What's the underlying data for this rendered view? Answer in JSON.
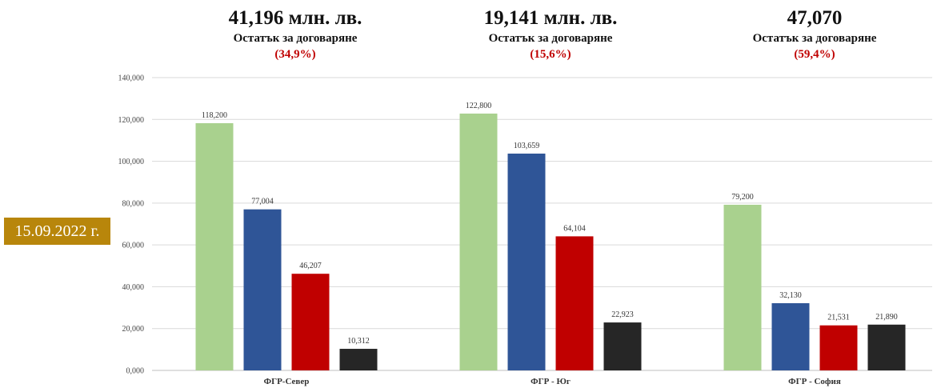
{
  "date_badge": "15.09.2022 г.",
  "headers": [
    {
      "amount": "41,196 млн. лв.",
      "label": "Остатък за договаряне",
      "pct": "(34,9%)"
    },
    {
      "amount": "19,141 млн. лв.",
      "label": "Остатък за договаряне",
      "pct": "(15,6%)"
    },
    {
      "amount": "47,070",
      "label": "Остатък за договаряне",
      "pct": "(59,4%)"
    }
  ],
  "chart_data": {
    "type": "bar",
    "categories": [
      "ФГР-Север",
      "ФГР - Юг",
      "ФГР - София"
    ],
    "series": [
      {
        "color": "#a9d18e",
        "values": [
          118.2,
          122.8,
          79.2
        ],
        "labels": [
          "118,200",
          "122,800",
          "79,200"
        ]
      },
      {
        "color": "#2f5597",
        "values": [
          77.004,
          103.659,
          32.13
        ],
        "labels": [
          "77,004",
          "103,659",
          "32,130"
        ]
      },
      {
        "color": "#c00000",
        "values": [
          46.207,
          64.104,
          21.531
        ],
        "labels": [
          "46,207",
          "64,104",
          "21,531"
        ]
      },
      {
        "color": "#262626",
        "values": [
          10.312,
          22.923,
          21.89
        ],
        "labels": [
          "10,312",
          "22,923",
          "21,890"
        ]
      }
    ],
    "ylim": [
      0,
      140
    ],
    "yticks": [
      {
        "value": 0,
        "label": "0,000"
      },
      {
        "value": 20,
        "label": "20,000"
      },
      {
        "value": 40,
        "label": "40,000"
      },
      {
        "value": 60,
        "label": "60,000"
      },
      {
        "value": 80,
        "label": "80,000"
      },
      {
        "value": 100,
        "label": "100,000"
      },
      {
        "value": 120,
        "label": "120,000"
      },
      {
        "value": 140,
        "label": "140,000"
      }
    ],
    "grid": true,
    "legend": "none"
  }
}
